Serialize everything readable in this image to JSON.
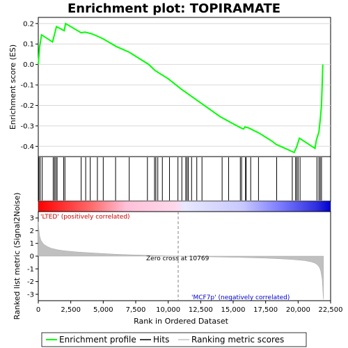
{
  "chart_data": {
    "type": "line",
    "title": "Enrichment plot: TOPIRAMATE",
    "top_panel": {
      "ylabel": "Enrichment score (ES)",
      "ylim": [
        -0.45,
        0.23
      ],
      "yticks": [
        "0.2",
        "0.1",
        "0.0",
        "-0.1",
        "-0.2",
        "-0.3",
        "-0.4"
      ],
      "ytick_values": [
        0.2,
        0.1,
        0.0,
        -0.1,
        -0.2,
        -0.3,
        -0.4
      ],
      "grid": true,
      "line_color": "#00ff00",
      "series": [
        {
          "name": "Enrichment profile",
          "x": [
            0,
            100,
            250,
            1100,
            1300,
            1400,
            2000,
            2100,
            3300,
            3600,
            4100,
            4500,
            5000,
            6000,
            7000,
            7500,
            8500,
            9000,
            10000,
            11000,
            12000,
            13000,
            14000,
            15000,
            15600,
            15800,
            15900,
            16200,
            17000,
            18000,
            18300,
            19000,
            19700,
            19900,
            20100,
            21300,
            21400,
            21600,
            21700,
            21800,
            21850,
            21900
          ],
          "y": [
            0.0,
            0.085,
            0.145,
            0.11,
            0.16,
            0.185,
            0.165,
            0.2,
            0.155,
            0.158,
            0.15,
            0.14,
            0.125,
            0.088,
            0.06,
            0.04,
            0.0,
            -0.03,
            -0.07,
            -0.12,
            -0.165,
            -0.21,
            -0.255,
            -0.29,
            -0.31,
            -0.315,
            -0.305,
            -0.31,
            -0.335,
            -0.375,
            -0.39,
            -0.41,
            -0.43,
            -0.4,
            -0.36,
            -0.41,
            -0.37,
            -0.33,
            -0.27,
            -0.2,
            -0.1,
            0.0
          ]
        }
      ]
    },
    "hits": [
      50,
      150,
      300,
      1150,
      1250,
      1350,
      1450,
      1950,
      2050,
      3300,
      3650,
      4000,
      4550,
      5000,
      5950,
      7000,
      8400,
      8950,
      9050,
      9200,
      9550,
      10100,
      10750,
      11050,
      11350,
      11450,
      11550,
      11800,
      12200,
      12600,
      14150,
      14650,
      15550,
      15650,
      15950,
      16000,
      16350,
      16950,
      18350,
      19550,
      19800,
      19900,
      20000,
      20150,
      21450,
      21600,
      21700,
      21800
    ],
    "bottom_panel": {
      "ylabel": "Ranked list metric (Signal2Noise)",
      "ylim": [
        -3.5,
        3.5
      ],
      "yticks": [
        "3",
        "2",
        "1",
        "0",
        "-1",
        "-2",
        "-3"
      ],
      "ytick_values": [
        3,
        2,
        1,
        0,
        -1,
        -2,
        -3
      ],
      "xlabel": "Rank in Ordered Dataset",
      "xlim": [
        0,
        22500
      ],
      "xticks": [
        "0",
        "2,500",
        "5,000",
        "7,500",
        "10,000",
        "12,500",
        "15,000",
        "17,500",
        "20,000",
        "22,500"
      ],
      "xtick_values": [
        0,
        2500,
        5000,
        7500,
        10000,
        12500,
        15000,
        17500,
        20000,
        22500
      ],
      "metric_x": [
        0,
        50,
        100,
        200,
        400,
        700,
        1000,
        1500,
        2000,
        3000,
        4000,
        5000,
        6000,
        7000,
        8000,
        9000,
        10000,
        10769,
        11500,
        12500,
        13500,
        14500,
        15500,
        16500,
        17500,
        18500,
        19500,
        20500,
        21000,
        21300,
        21500,
        21650,
        21750,
        21850,
        21950
      ],
      "metric_y": [
        2.7,
        2.1,
        1.6,
        1.25,
        0.95,
        0.75,
        0.62,
        0.5,
        0.42,
        0.33,
        0.26,
        0.2,
        0.15,
        0.11,
        0.08,
        0.05,
        0.02,
        0.0,
        -0.02,
        -0.04,
        -0.06,
        -0.08,
        -0.1,
        -0.13,
        -0.16,
        -0.2,
        -0.26,
        -0.35,
        -0.45,
        -0.55,
        -0.7,
        -0.9,
        -1.2,
        -1.8,
        -3.4
      ],
      "zero_cross_label": "Zero cross at 10769",
      "zero_cross_x": 10769,
      "positive_label": "'LTED' (positively correlated)",
      "negative_label": "'MCF7p' (negatively correlated)"
    },
    "legend": [
      {
        "name": "Enrichment profile",
        "color": "#00ff00"
      },
      {
        "name": "Hits",
        "color": "#000000"
      },
      {
        "name": "Ranking metric scores",
        "color": "#c0c0c0"
      }
    ],
    "legend_position": "bottom"
  }
}
